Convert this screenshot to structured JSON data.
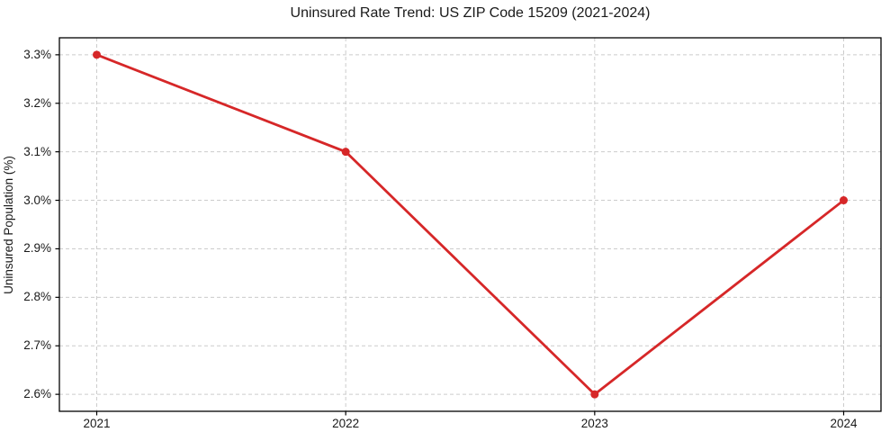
{
  "page": {
    "background": "#ffffff"
  },
  "chart_data": {
    "type": "line",
    "title": "Uninsured Rate Trend: US ZIP Code 15209 (2021-2024)",
    "xlabel": "",
    "ylabel": "Uninsured Population (%)",
    "x": [
      2021,
      2022,
      2023,
      2024
    ],
    "x_tick_labels": [
      "2021",
      "2022",
      "2023",
      "2024"
    ],
    "series": [
      {
        "name": "Uninsured Population (%)",
        "values": [
          3.3,
          3.1,
          2.6,
          3.0
        ]
      }
    ],
    "y_ticks": [
      2.6,
      2.7,
      2.8,
      2.9,
      3.0,
      3.1,
      3.2,
      3.3
    ],
    "y_tick_labels": [
      "2.6%",
      "2.7%",
      "2.8%",
      "2.9%",
      "3.0%",
      "3.1%",
      "3.2%",
      "3.3%"
    ],
    "xlim": [
      2020.85,
      2024.15
    ],
    "ylim": [
      2.565,
      3.335
    ],
    "grid": true,
    "grid_style": "dashed",
    "legend": "none",
    "colors": {
      "line": "#d62728",
      "marker": "#d62728",
      "grid": "#cccccc",
      "frame": "#000000",
      "text": "#1a1a1a"
    }
  }
}
